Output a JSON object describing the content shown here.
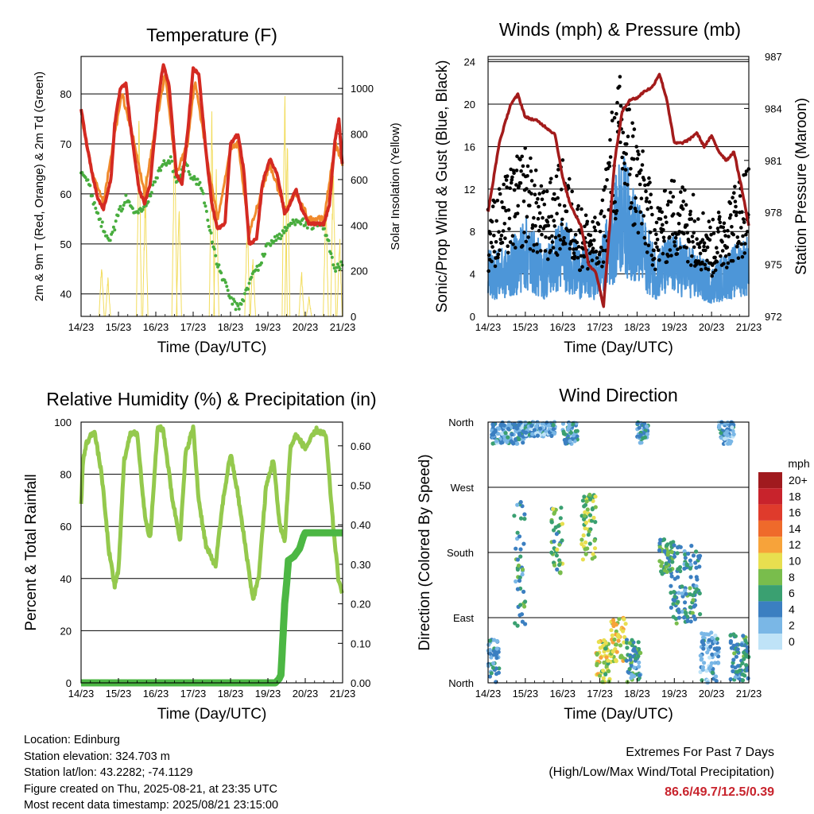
{
  "x_axis": {
    "label": "Time (Day/UTC)",
    "ticks": [
      "14/23",
      "15/23",
      "16/23",
      "17/23",
      "18/23",
      "19/23",
      "20/23",
      "21/23"
    ]
  },
  "colors": {
    "red": "#d42a22",
    "orange": "#f08a2c",
    "green": "#48ad3e",
    "yellow": "#f2dc5d",
    "black": "#000000",
    "blue": "#4d96d8",
    "maroon": "#a31b1b",
    "rh": "#94c94d",
    "precip": "#4cb744",
    "highlight": "#c8232c"
  },
  "panels": {
    "temperature": {
      "title": "Temperature (F)",
      "ylabel_left": "2m & 9m T (Red, Orange) & 2m Td (Green)",
      "ylabel_right": "Solar Insolation (Yellow)",
      "left_ticks": [
        "40",
        "50",
        "60",
        "70",
        "80"
      ],
      "right_ticks": [
        "0",
        "200",
        "400",
        "600",
        "800",
        "1000"
      ]
    },
    "winds": {
      "title": "Winds (mph) & Pressure (mb)",
      "ylabel_left": "Sonic/Prop Wind & Gust (Blue, Black)",
      "ylabel_right": "Station Pressure (Maroon)",
      "left_ticks": [
        "0",
        "4",
        "8",
        "12",
        "16",
        "20",
        "24"
      ],
      "right_ticks": [
        "972",
        "975",
        "978",
        "981",
        "984",
        "987"
      ]
    },
    "humidity": {
      "title": "Relative Humidity (%) & Precipitation (in)",
      "ylabel_left": "Percent & Total Rainfall",
      "left_ticks": [
        "0",
        "20",
        "40",
        "60",
        "80",
        "100"
      ],
      "right_ticks": [
        "0.00",
        "0.10",
        "0.20",
        "0.30",
        "0.40",
        "0.50",
        "0.60"
      ]
    },
    "direction": {
      "title": "Wind Direction",
      "ylabel_left": "Direction (Colored By Speed)",
      "left_ticks": [
        "North",
        "East",
        "South",
        "West",
        "North"
      ],
      "legend_title": "mph",
      "legend_labels": [
        "20+",
        "18",
        "16",
        "14",
        "12",
        "10",
        "8",
        "6",
        "4",
        "2",
        "0"
      ],
      "legend_colors": [
        "#a01a1e",
        "#c8232c",
        "#df3b2c",
        "#ef6a2b",
        "#f7a33a",
        "#e8df4f",
        "#79bd4c",
        "#3aa071",
        "#3b7fc1",
        "#7ab7e6",
        "#bfe3f7"
      ]
    }
  },
  "station": {
    "location": "Location: Edinburg",
    "elevation": "Station elevation: 324.703 m",
    "latlon": "Station lat/lon: 43.2282; -74.1129",
    "created": "Figure created on Thu, 2025-08-21, at 23:35 UTC",
    "latest": "Most recent data timestamp: 2025/08/21 23:15:00"
  },
  "extremes": {
    "line1": "Extremes For Past 7 Days",
    "line2": "(High/Low/Max Wind/Total Precipitation)",
    "values": "86.6/49.7/12.5/0.39"
  },
  "chart_data": [
    {
      "type": "line",
      "title": "Temperature (F)",
      "xlabel": "Time (Day/UTC)",
      "ylabel": "2m & 9m T (Red, Orange) & 2m Td (Green)",
      "y2label": "Solar Insolation (Yellow)",
      "ylim": [
        35.5,
        87.5
      ],
      "y2lim": [
        0,
        1140
      ],
      "x_unit": "days since 14/23 UTC",
      "series": [
        {
          "name": "2m T",
          "color": "red",
          "axis": "left",
          "x": [
            0,
            0.15,
            0.3,
            0.45,
            0.6,
            0.8,
            0.9,
            1.05,
            1.2,
            1.35,
            1.55,
            1.7,
            1.85,
            2.05,
            2.2,
            2.35,
            2.55,
            2.7,
            2.85,
            3.0,
            3.15,
            3.35,
            3.5,
            3.65,
            3.85,
            4.0,
            4.2,
            4.35,
            4.5,
            4.7,
            4.85,
            5.05,
            5.25,
            5.45,
            5.6,
            5.75,
            5.9,
            6.1,
            6.3,
            6.5,
            6.65,
            6.8,
            6.9,
            7.0
          ],
          "y": [
            77,
            70,
            64,
            59,
            57,
            63,
            74,
            81,
            82,
            72,
            61,
            58,
            62,
            78,
            86,
            82,
            64,
            62,
            72,
            85,
            84,
            68,
            58,
            53,
            54,
            70,
            72,
            65,
            50,
            51,
            62,
            67,
            64,
            56,
            58,
            61,
            57,
            54,
            54,
            54,
            58,
            71,
            75,
            65
          ]
        },
        {
          "name": "9m T",
          "color": "orange",
          "axis": "left",
          "x": [
            0,
            0.3,
            0.6,
            0.9,
            1.1,
            1.4,
            1.7,
            2.05,
            2.25,
            2.55,
            2.85,
            3.05,
            3.35,
            3.65,
            4.0,
            4.2,
            4.5,
            4.85,
            5.05,
            5.45,
            5.75,
            6.1,
            6.5,
            6.8,
            7.0
          ],
          "y": [
            76,
            64,
            58,
            72,
            80,
            71,
            60,
            76,
            84,
            64,
            70,
            83,
            68,
            55,
            69,
            70,
            52,
            61,
            66,
            57,
            60,
            55,
            55,
            70,
            66
          ]
        },
        {
          "name": "2m Td",
          "color": "green",
          "axis": "left",
          "x": [
            0,
            0.2,
            0.4,
            0.6,
            0.8,
            1.0,
            1.2,
            1.4,
            1.6,
            1.8,
            2.0,
            2.2,
            2.4,
            2.55,
            2.8,
            3.0,
            3.2,
            3.4,
            3.6,
            3.8,
            4.0,
            4.2,
            4.4,
            4.6,
            4.8,
            5.0,
            5.2,
            5.4,
            5.6,
            5.8,
            6.0,
            6.2,
            6.4,
            6.6,
            6.8,
            7.0
          ],
          "y": [
            65,
            62,
            57,
            53,
            51,
            56,
            59,
            57,
            57,
            59,
            63,
            66,
            67,
            62,
            66,
            63,
            62,
            55,
            47,
            43,
            39,
            37,
            40,
            44,
            46,
            50,
            51,
            52,
            54,
            55,
            54,
            53,
            54,
            51,
            45,
            46
          ]
        },
        {
          "name": "Solar Insolation",
          "color": "yellow",
          "axis": "right",
          "peaks": [
            [
              0.55,
              250
            ],
            [
              0.72,
              180
            ],
            [
              1.55,
              950
            ],
            [
              1.72,
              620
            ],
            [
              2.5,
              880
            ],
            [
              2.62,
              560
            ],
            [
              3.5,
              930
            ],
            [
              3.62,
              680
            ],
            [
              4.45,
              480
            ],
            [
              4.6,
              300
            ],
            [
              5.45,
              1140
            ],
            [
              5.52,
              820
            ],
            [
              5.9,
              220
            ],
            [
              6.1,
              90
            ],
            [
              6.55,
              560
            ],
            [
              6.75,
              760
            ],
            [
              6.92,
              380
            ]
          ]
        }
      ]
    },
    {
      "type": "line",
      "title": "Winds (mph) & Pressure (mb)",
      "xlabel": "Time (Day/UTC)",
      "ylabel": "Sonic/Prop Wind & Gust (Blue, Black)",
      "y2label": "Station Pressure (Maroon)",
      "ylim": [
        0,
        24.5
      ],
      "y2lim": [
        972,
        987
      ],
      "x_unit": "days since 14/23 UTC",
      "series": [
        {
          "name": "Wind",
          "color": "blue",
          "axis": "left",
          "x": [
            0,
            0.5,
            1.0,
            1.5,
            2.0,
            2.5,
            3.0,
            3.3,
            3.6,
            4.0,
            4.5,
            5.0,
            5.5,
            6.0,
            6.5,
            7.0
          ],
          "y": [
            4,
            4,
            6,
            4,
            6,
            4,
            4,
            7,
            10,
            7,
            4,
            5,
            4,
            3,
            4,
            5
          ]
        },
        {
          "name": "Gust",
          "color": "black",
          "axis": "left",
          "x": [
            0,
            0.5,
            1.0,
            1.5,
            2.0,
            2.5,
            3.0,
            3.3,
            3.6,
            4.0,
            4.5,
            5.0,
            5.5,
            6.0,
            6.5,
            7.0
          ],
          "y": [
            7,
            9,
            11,
            8,
            10,
            7,
            6,
            13,
            16,
            12,
            7,
            9,
            8,
            6,
            8,
            10
          ]
        },
        {
          "name": "Station Pressure",
          "color": "maroon",
          "axis": "right",
          "x": [
            0,
            0.3,
            0.6,
            0.8,
            1.0,
            1.3,
            1.5,
            1.8,
            2.0,
            2.2,
            2.5,
            2.7,
            2.9,
            3.1,
            3.4,
            3.6,
            3.8,
            4.0,
            4.2,
            4.4,
            4.6,
            4.8,
            5.0,
            5.2,
            5.4,
            5.6,
            5.8,
            6.0,
            6.2,
            6.4,
            6.6,
            6.8,
            7.0
          ],
          "y": [
            978,
            982,
            984.2,
            984.8,
            983.5,
            983.3,
            983.0,
            982.5,
            980.0,
            978.5,
            977.2,
            975.0,
            974.5,
            972.6,
            981.0,
            983.8,
            984.5,
            984.6,
            985.0,
            985.2,
            986.0,
            984.5,
            982.0,
            982.0,
            982.2,
            982.6,
            981.8,
            982.4,
            981.5,
            981.0,
            981.5,
            979.5,
            977.2
          ]
        }
      ]
    },
    {
      "type": "line",
      "title": "Relative Humidity (%) & Precipitation (in)",
      "xlabel": "Time (Day/UTC)",
      "ylabel": "Percent & Total Rainfall",
      "ylim": [
        0,
        100
      ],
      "y2lim": [
        0,
        0.66
      ],
      "x_unit": "days since 14/23 UTC",
      "series": [
        {
          "name": "Relative Humidity",
          "color": "rh",
          "axis": "left",
          "x": [
            0,
            0.05,
            0.15,
            0.35,
            0.55,
            0.75,
            0.9,
            1.0,
            1.15,
            1.3,
            1.5,
            1.7,
            1.85,
            2.05,
            2.2,
            2.45,
            2.65,
            2.8,
            3.0,
            3.15,
            3.35,
            3.6,
            3.8,
            4.0,
            4.2,
            4.4,
            4.6,
            4.75,
            4.95,
            5.15,
            5.3,
            5.45,
            5.6,
            5.75,
            6.0,
            6.3,
            6.55,
            6.75,
            6.9,
            7.0
          ],
          "y": [
            68,
            85,
            92,
            97,
            80,
            50,
            37,
            43,
            85,
            95,
            96,
            65,
            55,
            98,
            97,
            70,
            55,
            88,
            98,
            70,
            52,
            45,
            70,
            88,
            72,
            52,
            32,
            40,
            75,
            86,
            62,
            54,
            90,
            95,
            90,
            97,
            95,
            60,
            38,
            35
          ]
        },
        {
          "name": "Total Precipitation",
          "color": "precip",
          "axis": "right",
          "x": [
            0,
            5.2,
            5.3,
            5.35,
            5.45,
            5.5,
            5.55,
            5.7,
            5.85,
            5.95,
            6.0,
            7.0
          ],
          "y": [
            0,
            0,
            0.01,
            0.02,
            0.2,
            0.25,
            0.31,
            0.32,
            0.34,
            0.37,
            0.38,
            0.38
          ]
        }
      ]
    },
    {
      "type": "scatter",
      "title": "Wind Direction",
      "xlabel": "Time (Day/UTC)",
      "ylabel": "Direction (Colored By Speed)",
      "ylim": [
        0,
        360
      ],
      "x_unit": "days since 14/23 UTC",
      "color_by": "speed (mph)",
      "clusters": [
        {
          "x_range": [
            0.0,
            0.3
          ],
          "dir_range": [
            0,
            60
          ],
          "speed": 4
        },
        {
          "x_range": [
            0.1,
            1.0
          ],
          "dir_range": [
            330,
            360
          ],
          "speed": 3
        },
        {
          "x_range": [
            0.7,
            1.0
          ],
          "dir_range": [
            60,
            250
          ],
          "speed": 5
        },
        {
          "x_range": [
            1.0,
            1.8
          ],
          "dir_range": [
            340,
            360
          ],
          "speed": 3
        },
        {
          "x_range": [
            1.7,
            2.0
          ],
          "dir_range": [
            150,
            250
          ],
          "speed": 7
        },
        {
          "x_range": [
            2.0,
            2.4
          ],
          "dir_range": [
            330,
            360
          ],
          "speed": 4
        },
        {
          "x_range": [
            2.5,
            2.9
          ],
          "dir_range": [
            170,
            260
          ],
          "speed": 8
        },
        {
          "x_range": [
            2.9,
            3.3
          ],
          "dir_range": [
            0,
            60
          ],
          "speed": 9
        },
        {
          "x_range": [
            3.3,
            3.7
          ],
          "dir_range": [
            30,
            90
          ],
          "speed": 10
        },
        {
          "x_range": [
            3.7,
            4.1
          ],
          "dir_range": [
            0,
            60
          ],
          "speed": 5
        },
        {
          "x_range": [
            4.0,
            4.3
          ],
          "dir_range": [
            330,
            360
          ],
          "speed": 4
        },
        {
          "x_range": [
            4.6,
            5.0
          ],
          "dir_range": [
            150,
            200
          ],
          "speed": 6
        },
        {
          "x_range": [
            4.9,
            5.7
          ],
          "dir_range": [
            80,
            190
          ],
          "speed": 5
        },
        {
          "x_range": [
            5.7,
            6.2
          ],
          "dir_range": [
            0,
            70
          ],
          "speed": 3
        },
        {
          "x_range": [
            6.2,
            6.6
          ],
          "dir_range": [
            330,
            360
          ],
          "speed": 3
        },
        {
          "x_range": [
            6.5,
            7.0
          ],
          "dir_range": [
            0,
            70
          ],
          "speed": 5
        }
      ]
    }
  ]
}
